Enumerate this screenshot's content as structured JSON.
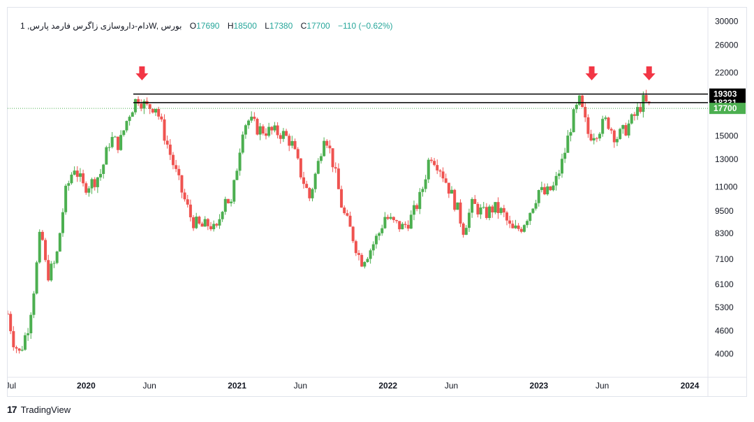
{
  "legend": {
    "symbol": "1 ,دام-داروسازی زاگرس فارمد پارس",
    "interval": "W",
    "exchange": "بورس",
    "open_label": "O",
    "open": "17690",
    "high_label": "H",
    "high": "18500",
    "low_label": "L",
    "low": "17380",
    "close_label": "C",
    "close": "17700",
    "change": "−110 (−0.62%)"
  },
  "branding": {
    "logo": "17",
    "name": "TradingView"
  },
  "colors": {
    "up": "#26a69a",
    "down": "#ef5350",
    "up_fill": "#4caf50",
    "arrow": "#f23645",
    "line": "#000000",
    "price_tag": "#4caf50"
  },
  "chart_data": {
    "type": "candlestick",
    "scale": "log",
    "y_ticks": [
      30000,
      26000,
      22000,
      15000,
      13000,
      11000,
      9500,
      8300,
      7100,
      6100,
      5300,
      4600,
      4000
    ],
    "ylim": [
      3500,
      31500
    ],
    "x_ticks": [
      {
        "label": "Jul",
        "t": 2019.5,
        "bold": false
      },
      {
        "label": "2020",
        "t": 2020.0,
        "bold": true
      },
      {
        "label": "Jun",
        "t": 2020.42,
        "bold": false
      },
      {
        "label": "2021",
        "t": 2021.0,
        "bold": true
      },
      {
        "label": "Jun",
        "t": 2021.42,
        "bold": false
      },
      {
        "label": "2022",
        "t": 2022.0,
        "bold": true
      },
      {
        "label": "Jun",
        "t": 2022.42,
        "bold": false
      },
      {
        "label": "2023",
        "t": 2023.0,
        "bold": true
      },
      {
        "label": "Jun",
        "t": 2023.42,
        "bold": false
      },
      {
        "label": "2024",
        "t": 2024.0,
        "bold": true
      }
    ],
    "xlim": [
      2019.48,
      2024.12
    ],
    "horizontal_lines": [
      {
        "value": 19303,
        "label": "19303",
        "tag_color": "#000000"
      },
      {
        "value": 18331,
        "label": "18331",
        "tag_color": "#000000"
      }
    ],
    "last_price": {
      "value": 17700,
      "label": "17700",
      "tag_color": "#4caf50"
    },
    "arrows_at": [
      2020.37,
      2023.35,
      2023.73
    ],
    "anchors": [
      [
        2019.48,
        5100
      ],
      [
        2019.52,
        4300
      ],
      [
        2019.56,
        4000
      ],
      [
        2019.62,
        4800
      ],
      [
        2019.66,
        6200
      ],
      [
        2019.7,
        8600
      ],
      [
        2019.74,
        6400
      ],
      [
        2019.8,
        7000
      ],
      [
        2019.86,
        10500
      ],
      [
        2019.92,
        12500
      ],
      [
        2019.98,
        11000
      ],
      [
        2020.04,
        11300
      ],
      [
        2020.1,
        12000
      ],
      [
        2020.16,
        14800
      ],
      [
        2020.22,
        14200
      ],
      [
        2020.28,
        17000
      ],
      [
        2020.34,
        19000
      ],
      [
        2020.4,
        17800
      ],
      [
        2020.46,
        18000
      ],
      [
        2020.52,
        15000
      ],
      [
        2020.58,
        12500
      ],
      [
        2020.64,
        10500
      ],
      [
        2020.7,
        9000
      ],
      [
        2020.76,
        8600
      ],
      [
        2020.82,
        8800
      ],
      [
        2020.86,
        8300
      ],
      [
        2020.92,
        10500
      ],
      [
        2020.96,
        9800
      ],
      [
        2021.0,
        12500
      ],
      [
        2021.04,
        16000
      ],
      [
        2021.08,
        16500
      ],
      [
        2021.14,
        15600
      ],
      [
        2021.22,
        15400
      ],
      [
        2021.3,
        15200
      ],
      [
        2021.36,
        14400
      ],
      [
        2021.42,
        12000
      ],
      [
        2021.48,
        10300
      ],
      [
        2021.54,
        12800
      ],
      [
        2021.58,
        15500
      ],
      [
        2021.64,
        12500
      ],
      [
        2021.7,
        9500
      ],
      [
        2021.76,
        8300
      ],
      [
        2021.82,
        7000
      ],
      [
        2021.88,
        7500
      ],
      [
        2021.94,
        8300
      ],
      [
        2021.98,
        9200
      ],
      [
        2022.04,
        8800
      ],
      [
        2022.1,
        8600
      ],
      [
        2022.16,
        9200
      ],
      [
        2022.22,
        10500
      ],
      [
        2022.28,
        13500
      ],
      [
        2022.34,
        12500
      ],
      [
        2022.4,
        11000
      ],
      [
        2022.46,
        9600
      ],
      [
        2022.5,
        8500
      ],
      [
        2022.56,
        9900
      ],
      [
        2022.64,
        9300
      ],
      [
        2022.7,
        9700
      ],
      [
        2022.76,
        9400
      ],
      [
        2022.82,
        8400
      ],
      [
        2022.88,
        8600
      ],
      [
        2022.94,
        9500
      ],
      [
        2023.0,
        10800
      ],
      [
        2023.04,
        10500
      ],
      [
        2023.1,
        11000
      ],
      [
        2023.16,
        13000
      ],
      [
        2023.22,
        16500
      ],
      [
        2023.27,
        18500
      ],
      [
        2023.33,
        15000
      ],
      [
        2023.39,
        15500
      ],
      [
        2023.45,
        16500
      ],
      [
        2023.51,
        14800
      ],
      [
        2023.57,
        15500
      ],
      [
        2023.63,
        16800
      ],
      [
        2023.69,
        18500
      ],
      [
        2023.74,
        17700
      ]
    ]
  }
}
